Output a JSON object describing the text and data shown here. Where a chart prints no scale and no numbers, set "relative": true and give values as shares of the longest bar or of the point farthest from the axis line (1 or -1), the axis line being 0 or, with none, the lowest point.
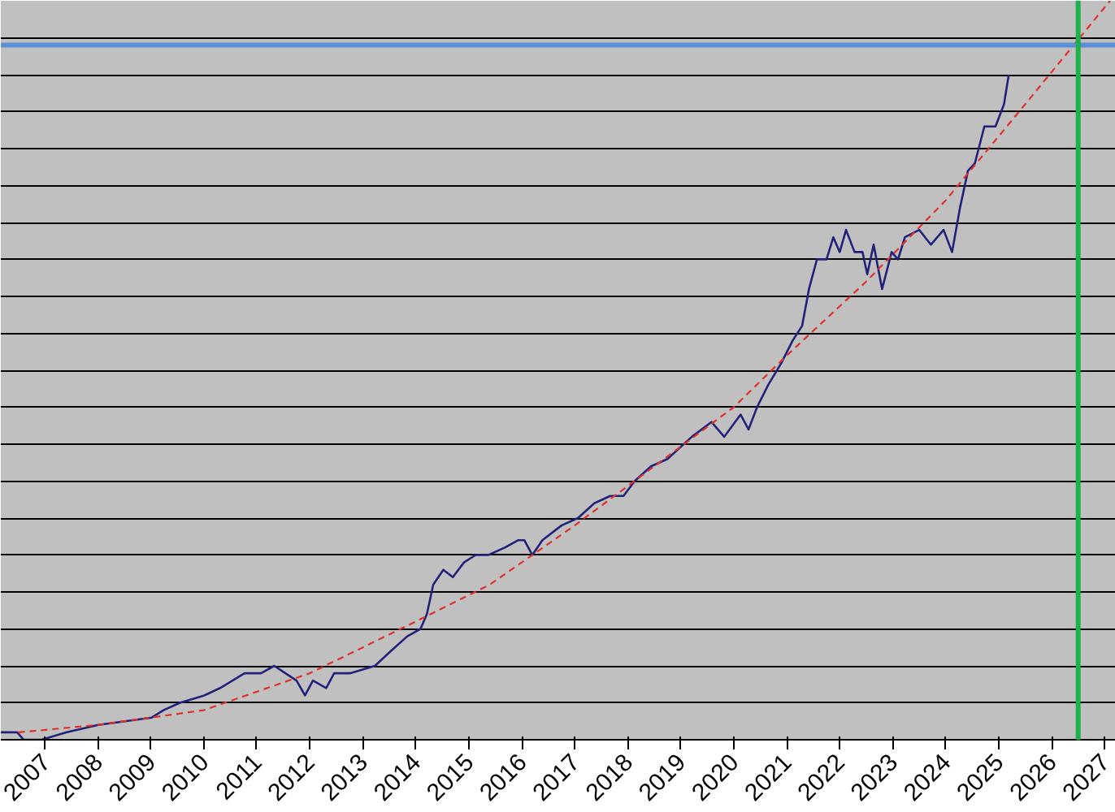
{
  "chart_data": {
    "type": "line",
    "relative": true,
    "grid": "y",
    "marker": "none",
    "xlim": [
      2006.17,
      2027.21
    ],
    "xticks": [
      2007,
      2008,
      2009,
      2010,
      2011,
      2012,
      2013,
      2014,
      2015,
      2016,
      2017,
      2018,
      2019,
      2020,
      2021,
      2022,
      2023,
      2024,
      2025,
      2026,
      2027
    ],
    "series": [
      {
        "color": "#22227a",
        "line_style": "solid",
        "x": [
          2006.17,
          2006.48,
          2006.6,
          2006.94,
          2007.4,
          2008.01,
          2009.02,
          2009.24,
          2009.55,
          2010.01,
          2010.31,
          2010.77,
          2011.08,
          2011.33,
          2011.54,
          2011.75,
          2011.91,
          2012.06,
          2012.31,
          2012.46,
          2012.77,
          2013.23,
          2013.53,
          2013.84,
          2014.09,
          2014.21,
          2014.33,
          2014.52,
          2014.7,
          2014.91,
          2015.13,
          2015.37,
          2015.68,
          2015.93,
          2016.05,
          2016.2,
          2016.39,
          2016.75,
          2017.06,
          2017.37,
          2017.67,
          2017.92,
          2018.13,
          2018.44,
          2018.75,
          2019.21,
          2019.58,
          2019.82,
          2020.13,
          2020.28,
          2020.44,
          2020.65,
          2020.9,
          2021.11,
          2021.29,
          2021.42,
          2021.57,
          2021.75,
          2021.88,
          2022.0,
          2022.12,
          2022.28,
          2022.43,
          2022.52,
          2022.64,
          2022.8,
          2022.98,
          2023.1,
          2023.23,
          2023.5,
          2023.72,
          2023.96,
          2024.12,
          2024.27,
          2024.42,
          2024.55,
          2024.73,
          2024.94,
          2025.1,
          2025.19
        ],
        "values": [
          0.01,
          0.01,
          0.0,
          0.0,
          0.01,
          0.02,
          0.03,
          0.04,
          0.05,
          0.06,
          0.07,
          0.09,
          0.09,
          0.1,
          0.09,
          0.08,
          0.06,
          0.08,
          0.07,
          0.09,
          0.09,
          0.1,
          0.12,
          0.14,
          0.15,
          0.17,
          0.21,
          0.23,
          0.22,
          0.24,
          0.25,
          0.25,
          0.26,
          0.27,
          0.27,
          0.25,
          0.27,
          0.29,
          0.3,
          0.32,
          0.33,
          0.33,
          0.35,
          0.37,
          0.38,
          0.41,
          0.43,
          0.41,
          0.44,
          0.42,
          0.45,
          0.48,
          0.51,
          0.54,
          0.56,
          0.61,
          0.65,
          0.65,
          0.68,
          0.66,
          0.69,
          0.66,
          0.66,
          0.63,
          0.67,
          0.61,
          0.66,
          0.65,
          0.68,
          0.69,
          0.67,
          0.69,
          0.66,
          0.72,
          0.77,
          0.78,
          0.83,
          0.83,
          0.86,
          0.9
        ]
      },
      {
        "color": "#e0302a",
        "line_style": "dashed",
        "x": [
          2006.5,
          2008,
          2010,
          2012,
          2014,
          2015.4,
          2017,
          2018.5,
          2020,
          2021,
          2022.5,
          2024,
          2025.5,
          2027.1
        ],
        "values": [
          0.01,
          0.02,
          0.04,
          0.09,
          0.16,
          0.21,
          0.29,
          0.37,
          0.45,
          0.52,
          0.62,
          0.73,
          0.86,
          1.0
        ]
      }
    ],
    "ref_lines": [
      {
        "axis": "y",
        "value": 0.94,
        "color": "#5b8fd6"
      },
      {
        "axis": "x",
        "value": 2026.5,
        "color": "#1db04a"
      }
    ]
  }
}
